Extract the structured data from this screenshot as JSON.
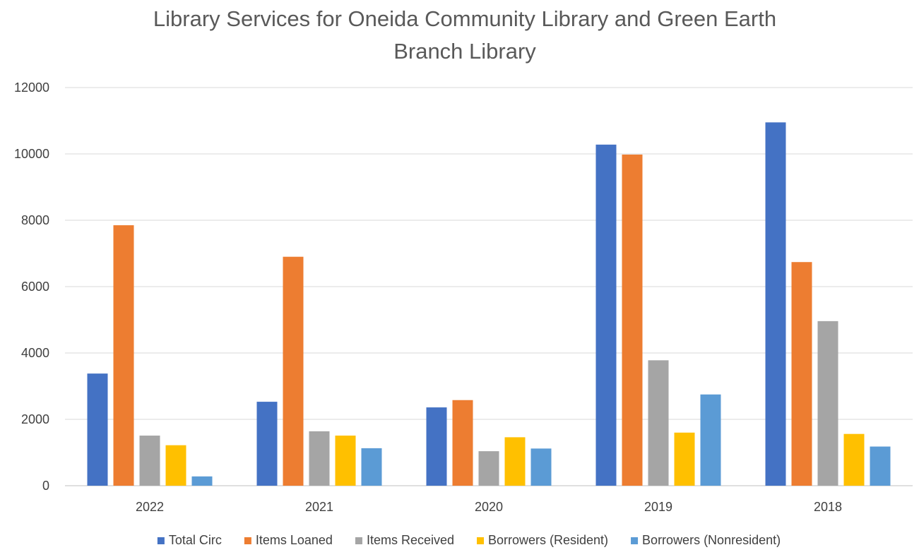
{
  "chart_data": {
    "type": "bar",
    "title_lines": [
      "Library Services for Oneida Community Library and Green Earth",
      "Branch Library"
    ],
    "xlabel": "",
    "ylabel": "",
    "categories": [
      "2022",
      "2021",
      "2020",
      "2019",
      "2018"
    ],
    "ylim": [
      0,
      12000
    ],
    "yticks": [
      0,
      2000,
      4000,
      6000,
      8000,
      10000,
      12000
    ],
    "grid": true,
    "legend_position": "bottom",
    "series": [
      {
        "name": "Total Circ",
        "color": "#4472C4",
        "values": [
          3380,
          2530,
          2360,
          10280,
          10950
        ]
      },
      {
        "name": "Items Loaned",
        "color": "#ED7D31",
        "values": [
          7850,
          6900,
          2580,
          9980,
          6740
        ]
      },
      {
        "name": "Items Received",
        "color": "#A5A5A5",
        "values": [
          1510,
          1640,
          1040,
          3780,
          4960
        ]
      },
      {
        "name": "Borrowers (Resident)",
        "color": "#FFC000",
        "values": [
          1220,
          1510,
          1460,
          1600,
          1560
        ]
      },
      {
        "name": "Borrowers (Nonresident)",
        "color": "#5B9BD5",
        "values": [
          280,
          1130,
          1120,
          2750,
          1180
        ]
      }
    ]
  }
}
